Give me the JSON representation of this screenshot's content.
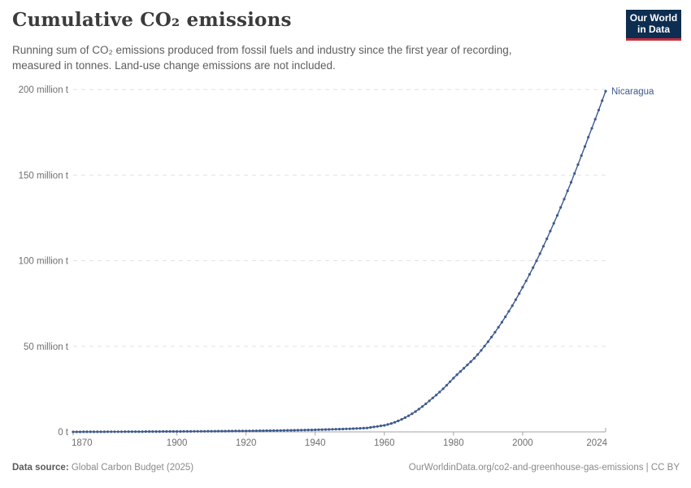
{
  "header": {
    "title": "Cumulative CO₂ emissions",
    "subtitle_line1": "Running sum of CO₂ emissions produced from fossil fuels and industry since the first year of recording,",
    "subtitle_line2": "measured in tonnes. Land-use change emissions are not included.",
    "logo_line1": "Our World",
    "logo_line2": "in Data",
    "logo_colors": {
      "navy": "#0d2d51",
      "red": "#c42d3c"
    }
  },
  "chart_data": {
    "type": "line",
    "title": "Cumulative CO₂ emissions",
    "unit": "tonnes",
    "x_range": [
      1870,
      2024
    ],
    "y_range": [
      0,
      200
    ],
    "x_ticks": [
      1870,
      1900,
      1920,
      1940,
      1960,
      1980,
      2000,
      2024
    ],
    "y_ticks": [
      {
        "value": 0,
        "label": "0 t"
      },
      {
        "value": 50,
        "label": "50 million t"
      },
      {
        "value": 100,
        "label": "100 million t"
      },
      {
        "value": 150,
        "label": "150 million t"
      },
      {
        "value": 200,
        "label": "200 million t"
      }
    ],
    "grid": "dashed-horizontal",
    "legend_position": "end-of-line",
    "series": [
      {
        "name": "Nicaragua",
        "color": "#3d5a8e",
        "x_start": 1870,
        "x_step": 1,
        "values": [
          0.01,
          0.02,
          0.02,
          0.03,
          0.03,
          0.04,
          0.05,
          0.05,
          0.06,
          0.07,
          0.08,
          0.09,
          0.1,
          0.11,
          0.11,
          0.12,
          0.13,
          0.14,
          0.14,
          0.15,
          0.16,
          0.17,
          0.18,
          0.19,
          0.2,
          0.21,
          0.22,
          0.22,
          0.23,
          0.24,
          0.25,
          0.26,
          0.27,
          0.29,
          0.3,
          0.31,
          0.33,
          0.34,
          0.35,
          0.37,
          0.38,
          0.4,
          0.42,
          0.43,
          0.45,
          0.47,
          0.48,
          0.5,
          0.52,
          0.53,
          0.55,
          0.57,
          0.6,
          0.62,
          0.65,
          0.67,
          0.7,
          0.72,
          0.75,
          0.77,
          0.8,
          0.84,
          0.88,
          0.92,
          0.96,
          1.0,
          1.04,
          1.08,
          1.12,
          1.16,
          1.2,
          1.26,
          1.32,
          1.38,
          1.44,
          1.5,
          1.56,
          1.62,
          1.68,
          1.74,
          1.8,
          1.9,
          2.0,
          2.1,
          2.2,
          2.3,
          2.6,
          2.9,
          3.2,
          3.5,
          3.8,
          4.3,
          4.9,
          5.6,
          6.4,
          7.3,
          8.3,
          9.4,
          10.6,
          11.9,
          13.3,
          14.8,
          16.4,
          18.1,
          19.8,
          21.5,
          23.3,
          25.2,
          27.2,
          29.3,
          31.4,
          33.4,
          35.3,
          37.2,
          39.1,
          41.0,
          43.0,
          45.2,
          47.6,
          50.1,
          52.7,
          55.4,
          58.2,
          61.1,
          64.1,
          67.2,
          70.4,
          73.7,
          77.2,
          80.8,
          84.5,
          88.2,
          92.0,
          95.9,
          99.9,
          104.1,
          108.4,
          112.8,
          117.3,
          121.8,
          126.4,
          131.1,
          135.9,
          140.8,
          145.8,
          150.9,
          156.1,
          161.4,
          166.7,
          172.1,
          177.3,
          182.6,
          188.0,
          193.5,
          199.0
        ]
      }
    ]
  },
  "footer": {
    "source_label": "Data source:",
    "source_value": " Global Carbon Budget (2025)",
    "right_text": "OurWorldinData.org/co2-and-greenhouse-gas-emissions | CC BY"
  }
}
